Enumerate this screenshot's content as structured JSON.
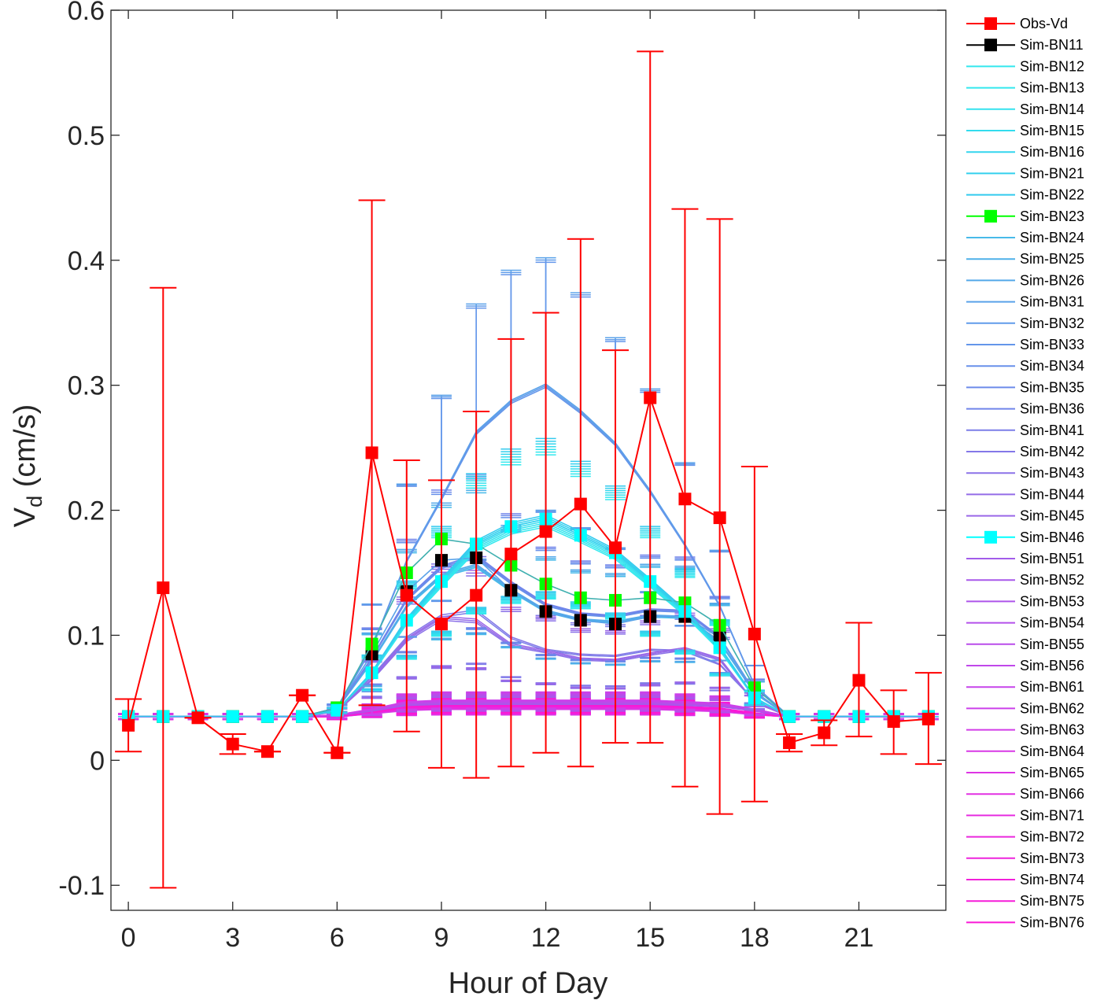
{
  "chart_data": {
    "type": "line",
    "xlabel": "Hour of Day",
    "ylabel_main": "V",
    "ylabel_sub": "d",
    "ylabel_unit": " (cm/s)",
    "xlim": [
      -0.5,
      23.5
    ],
    "ylim": [
      -0.12,
      0.6
    ],
    "xticks": [
      0,
      3,
      6,
      9,
      12,
      15,
      18,
      21
    ],
    "xtick_labels": [
      "0",
      "3",
      "6",
      "9",
      "12",
      "15",
      "18",
      "21"
    ],
    "yticks": [
      -0.1,
      0,
      0.1,
      0.2,
      0.3,
      0.4,
      0.5,
      0.6
    ],
    "ytick_labels": [
      "-0.1",
      "0",
      "0.1",
      "0.2",
      "0.3",
      "0.4",
      "0.5",
      "0.6"
    ],
    "grid": false,
    "legend_position": "outside-right",
    "hours": [
      0,
      1,
      2,
      3,
      4,
      5,
      6,
      7,
      8,
      9,
      10,
      11,
      12,
      13,
      14,
      15,
      16,
      17,
      18,
      19,
      20,
      21,
      22,
      23
    ],
    "obs": {
      "name": "Obs-Vd",
      "color": "#ff0000",
      "values": [
        0.028,
        0.138,
        0.034,
        0.013,
        0.007,
        0.052,
        0.006,
        0.246,
        0.132,
        0.109,
        0.132,
        0.165,
        0.183,
        0.205,
        0.17,
        0.29,
        0.209,
        0.194,
        0.101,
        0.014,
        0.022,
        0.064,
        0.031,
        0.033
      ],
      "upper": [
        0.049,
        0.378,
        0.034,
        0.021,
        0.007,
        0.052,
        0.006,
        0.448,
        0.24,
        0.224,
        0.279,
        0.337,
        0.358,
        0.417,
        0.328,
        0.567,
        0.441,
        0.433,
        0.235,
        0.021,
        0.032,
        0.11,
        0.056,
        0.07
      ],
      "lower": [
        0.007,
        -0.102,
        0.034,
        0.005,
        0.007,
        0.052,
        0.006,
        0.044,
        0.023,
        -0.006,
        -0.014,
        -0.005,
        0.006,
        -0.005,
        0.014,
        0.014,
        -0.021,
        -0.043,
        -0.033,
        0.007,
        0.012,
        0.019,
        0.005,
        -0.003
      ]
    },
    "sim_groups": [
      {
        "label": "Sim-BN11",
        "color": "#000000",
        "marker": "square",
        "group": "mid",
        "values": [
          0.035,
          0.035,
          0.035,
          0.035,
          0.035,
          0.035,
          0.042,
          0.085,
          0.135,
          0.16,
          0.162,
          0.136,
          0.119,
          0.112,
          0.109,
          0.115,
          0.115,
          0.098,
          0.055,
          0.035,
          0.035,
          0.035,
          0.035,
          0.035
        ]
      },
      {
        "label": "Sim-BN12",
        "color": "#33e8ee",
        "marker": "none",
        "group": "cyan"
      },
      {
        "label": "Sim-BN13",
        "color": "#33e8ee",
        "marker": "none",
        "group": "cyan"
      },
      {
        "label": "Sim-BN14",
        "color": "#33e2ee",
        "marker": "none",
        "group": "cyan"
      },
      {
        "label": "Sim-BN15",
        "color": "#33dcee",
        "marker": "none",
        "group": "cyan"
      },
      {
        "label": "Sim-BN16",
        "color": "#33d6ee",
        "marker": "none",
        "group": "cyan"
      },
      {
        "label": "Sim-BN21",
        "color": "#33d0ee",
        "marker": "none",
        "group": "cyan"
      },
      {
        "label": "Sim-BN22",
        "color": "#33caee",
        "marker": "none",
        "group": "cyan"
      },
      {
        "label": "Sim-BN23",
        "color": "#00ff00",
        "marker": "square",
        "group": "green",
        "values": [
          0.035,
          0.035,
          0.035,
          0.035,
          0.035,
          0.035,
          0.042,
          0.093,
          0.15,
          0.177,
          0.173,
          0.156,
          0.141,
          0.13,
          0.128,
          0.13,
          0.126,
          0.108,
          0.058,
          0.035,
          0.035,
          0.035,
          0.035,
          0.035
        ]
      },
      {
        "label": "Sim-BN24",
        "color": "#48bae9",
        "marker": "none",
        "group": "blue"
      },
      {
        "label": "Sim-BN25",
        "color": "#4eb0e9",
        "marker": "none",
        "group": "blue"
      },
      {
        "label": "Sim-BN26",
        "color": "#54a8e9",
        "marker": "none",
        "group": "blue"
      },
      {
        "label": "Sim-BN31",
        "color": "#5aa2e9",
        "marker": "none",
        "group": "blue"
      },
      {
        "label": "Sim-BN32",
        "color": "#609cea",
        "marker": "none",
        "group": "blue"
      },
      {
        "label": "Sim-BN33",
        "color": "#6496ea",
        "marker": "none",
        "group": "blue"
      },
      {
        "label": "Sim-BN34",
        "color": "#6890ea",
        "marker": "none",
        "group": "blue"
      },
      {
        "label": "Sim-BN35",
        "color": "#6c8aea",
        "marker": "none",
        "group": "blue"
      },
      {
        "label": "Sim-BN36",
        "color": "#7084ea",
        "marker": "none",
        "group": "blue"
      },
      {
        "label": "Sim-BN41",
        "color": "#7c7ee8",
        "marker": "none",
        "group": "purple"
      },
      {
        "label": "Sim-BN42",
        "color": "#8478e8",
        "marker": "none",
        "group": "purple"
      },
      {
        "label": "Sim-BN43",
        "color": "#8c72e8",
        "marker": "none",
        "group": "purple"
      },
      {
        "label": "Sim-BN44",
        "color": "#946ce8",
        "marker": "none",
        "group": "purple"
      },
      {
        "label": "Sim-BN45",
        "color": "#9a68e8",
        "marker": "none",
        "group": "purple"
      },
      {
        "label": "Sim-BN46",
        "color": "#00ffff",
        "marker": "square",
        "group": "cyanmark",
        "values": [
          0.035,
          0.035,
          0.035,
          0.035,
          0.035,
          0.035,
          0.04,
          0.07,
          0.112,
          0.143,
          0.173,
          0.187,
          0.193,
          0.18,
          0.166,
          0.143,
          0.119,
          0.09,
          0.05,
          0.035,
          0.035,
          0.035,
          0.035,
          0.035
        ]
      },
      {
        "label": "Sim-BN51",
        "color": "#a25cea",
        "marker": "none",
        "group": "violet"
      },
      {
        "label": "Sim-BN52",
        "color": "#a858ea",
        "marker": "none",
        "group": "violet"
      },
      {
        "label": "Sim-BN53",
        "color": "#ae54ea",
        "marker": "none",
        "group": "violet"
      },
      {
        "label": "Sim-BN54",
        "color": "#b450ea",
        "marker": "none",
        "group": "violet"
      },
      {
        "label": "Sim-BN55",
        "color": "#ba4cea",
        "marker": "none",
        "group": "violet"
      },
      {
        "label": "Sim-BN56",
        "color": "#c048ea",
        "marker": "none",
        "group": "violet"
      },
      {
        "label": "Sim-BN61",
        "color": "#c644ea",
        "marker": "none",
        "group": "violet"
      },
      {
        "label": "Sim-BN62",
        "color": "#cc40ea",
        "marker": "none",
        "group": "violet"
      },
      {
        "label": "Sim-BN63",
        "color": "#d23ce8",
        "marker": "none",
        "group": "magenta"
      },
      {
        "label": "Sim-BN64",
        "color": "#d838e6",
        "marker": "none",
        "group": "magenta"
      },
      {
        "label": "Sim-BN65",
        "color": "#de34e4",
        "marker": "none",
        "group": "magenta"
      },
      {
        "label": "Sim-BN66",
        "color": "#e230e2",
        "marker": "none",
        "group": "magenta"
      },
      {
        "label": "Sim-BN71",
        "color": "#e62ce0",
        "marker": "none",
        "group": "magenta"
      },
      {
        "label": "Sim-BN72",
        "color": "#ea28de",
        "marker": "none",
        "group": "magenta"
      },
      {
        "label": "Sim-BN73",
        "color": "#ee24dc",
        "marker": "none",
        "group": "magenta"
      },
      {
        "label": "Sim-BN74",
        "color": "#f220da",
        "marker": "none",
        "group": "magenta"
      },
      {
        "label": "Sim-BN75",
        "color": "#f61cd8",
        "marker": "none",
        "group": "magenta"
      },
      {
        "label": "Sim-BN76",
        "color": "#fa18d6",
        "marker": "none",
        "group": "magenta"
      }
    ],
    "group_curves": {
      "blue_high": [
        0.035,
        0.035,
        0.035,
        0.035,
        0.035,
        0.035,
        0.042,
        0.09,
        0.16,
        0.21,
        0.263,
        0.288,
        0.301,
        0.28,
        0.254,
        0.216,
        0.173,
        0.124,
        0.06,
        0.035,
        0.035,
        0.035,
        0.035,
        0.035
      ],
      "blue_high_upper": [
        0.035,
        0.035,
        0.035,
        0.035,
        0.035,
        0.035,
        0.045,
        0.125,
        0.221,
        0.292,
        0.365,
        0.392,
        0.402,
        0.374,
        0.338,
        0.297,
        0.238,
        0.168,
        0.076,
        0.035,
        0.035,
        0.035,
        0.035,
        0.035
      ],
      "blue_high_lower": [
        0.035,
        0.035,
        0.035,
        0.035,
        0.035,
        0.035,
        0.039,
        0.055,
        0.099,
        0.128,
        0.161,
        0.184,
        0.2,
        0.186,
        0.17,
        0.135,
        0.108,
        0.08,
        0.044,
        0.035,
        0.035,
        0.035,
        0.035,
        0.035
      ],
      "blue_mid": [
        0.035,
        0.035,
        0.035,
        0.035,
        0.035,
        0.035,
        0.041,
        0.08,
        0.125,
        0.15,
        0.158,
        0.138,
        0.121,
        0.114,
        0.112,
        0.117,
        0.116,
        0.096,
        0.054,
        0.035,
        0.035,
        0.035,
        0.035,
        0.035
      ],
      "purple": [
        0.035,
        0.035,
        0.035,
        0.035,
        0.035,
        0.035,
        0.04,
        0.068,
        0.1,
        0.118,
        0.122,
        0.1,
        0.09,
        0.086,
        0.085,
        0.09,
        0.089,
        0.078,
        0.048,
        0.035,
        0.035,
        0.035,
        0.035,
        0.035
      ],
      "purple_low": [
        0.035,
        0.035,
        0.035,
        0.035,
        0.035,
        0.035,
        0.039,
        0.064,
        0.095,
        0.112,
        0.11,
        0.091,
        0.086,
        0.08,
        0.079,
        0.084,
        0.088,
        0.08,
        0.046,
        0.035,
        0.035,
        0.035,
        0.035,
        0.035
      ],
      "violet": [
        0.035,
        0.035,
        0.035,
        0.035,
        0.035,
        0.035,
        0.036,
        0.04,
        0.045,
        0.046,
        0.046,
        0.046,
        0.046,
        0.046,
        0.046,
        0.046,
        0.045,
        0.044,
        0.04,
        0.035,
        0.035,
        0.035,
        0.035,
        0.035
      ],
      "magenta": [
        0.035,
        0.035,
        0.035,
        0.035,
        0.035,
        0.035,
        0.035,
        0.038,
        0.041,
        0.042,
        0.042,
        0.042,
        0.042,
        0.042,
        0.042,
        0.042,
        0.041,
        0.04,
        0.037,
        0.035,
        0.035,
        0.035,
        0.035,
        0.035
      ]
    }
  }
}
